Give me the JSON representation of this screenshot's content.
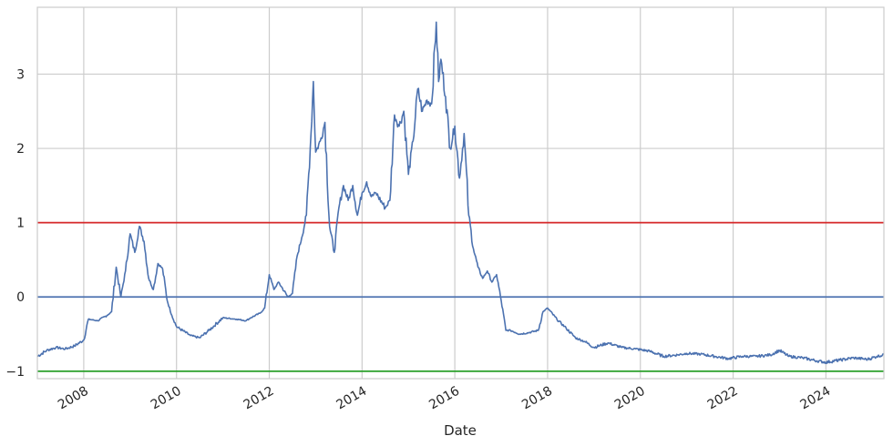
{
  "chart_data": {
    "type": "line",
    "title": "",
    "xlabel": "Date",
    "ylabel": "",
    "xlim": [
      2007.0,
      2025.25
    ],
    "ylim": [
      -1.1,
      3.9
    ],
    "grid": true,
    "x_ticks": [
      {
        "value": 2008,
        "label": "2008"
      },
      {
        "value": 2010,
        "label": "2010"
      },
      {
        "value": 2012,
        "label": "2012"
      },
      {
        "value": 2014,
        "label": "2014"
      },
      {
        "value": 2016,
        "label": "2016"
      },
      {
        "value": 2018,
        "label": "2018"
      },
      {
        "value": 2020,
        "label": "2020"
      },
      {
        "value": 2022,
        "label": "2022"
      },
      {
        "value": 2024,
        "label": "2024"
      }
    ],
    "y_ticks": [
      {
        "value": -1,
        "label": "−1"
      },
      {
        "value": 0,
        "label": "0"
      },
      {
        "value": 1,
        "label": "1"
      },
      {
        "value": 2,
        "label": "2"
      },
      {
        "value": 3,
        "label": "3"
      }
    ],
    "reference_lines": [
      {
        "y": 1,
        "color": "#d62728"
      },
      {
        "y": 0,
        "color": "#4c72b0"
      },
      {
        "y": -1,
        "color": "#2ca02c"
      }
    ],
    "series": [
      {
        "color": "#4c72b0",
        "x": [
          2007.0,
          2007.2,
          2007.4,
          2007.6,
          2007.8,
          2008.0,
          2008.1,
          2008.3,
          2008.5,
          2008.6,
          2008.7,
          2008.8,
          2008.9,
          2009.0,
          2009.1,
          2009.2,
          2009.3,
          2009.4,
          2009.5,
          2009.6,
          2009.7,
          2009.8,
          2009.9,
          2010.0,
          2010.3,
          2010.5,
          2010.7,
          2011.0,
          2011.3,
          2011.5,
          2011.6,
          2011.8,
          2011.9,
          2012.0,
          2012.1,
          2012.2,
          2012.4,
          2012.5,
          2012.6,
          2012.7,
          2012.8,
          2012.9,
          2012.95,
          2013.0,
          2013.1,
          2013.2,
          2013.3,
          2013.4,
          2013.5,
          2013.6,
          2013.7,
          2013.8,
          2013.9,
          2014.0,
          2014.1,
          2014.2,
          2014.3,
          2014.5,
          2014.6,
          2014.7,
          2014.8,
          2014.9,
          2015.0,
          2015.1,
          2015.2,
          2015.3,
          2015.4,
          2015.5,
          2015.6,
          2015.65,
          2015.7,
          2015.8,
          2015.9,
          2016.0,
          2016.1,
          2016.2,
          2016.3,
          2016.4,
          2016.5,
          2016.6,
          2016.7,
          2016.8,
          2016.9,
          2017.0,
          2017.1,
          2017.2,
          2017.4,
          2017.6,
          2017.8,
          2017.9,
          2018.0,
          2018.2,
          2018.4,
          2018.6,
          2018.8,
          2019.0,
          2019.3,
          2019.6,
          2019.9,
          2020.2,
          2020.5,
          2020.8,
          2021.0,
          2021.3,
          2021.6,
          2021.9,
          2022.2,
          2022.5,
          2022.8,
          2023.0,
          2023.2,
          2023.5,
          2023.8,
          2024.0,
          2024.3,
          2024.6,
          2024.9,
          2025.1,
          2025.25
        ],
        "values": [
          -0.8,
          -0.72,
          -0.68,
          -0.7,
          -0.66,
          -0.58,
          -0.3,
          -0.32,
          -0.25,
          -0.2,
          0.4,
          0.0,
          0.35,
          0.85,
          0.6,
          0.95,
          0.75,
          0.25,
          0.1,
          0.45,
          0.38,
          -0.05,
          -0.25,
          -0.4,
          -0.52,
          -0.55,
          -0.45,
          -0.28,
          -0.3,
          -0.32,
          -0.28,
          -0.22,
          -0.15,
          0.3,
          0.1,
          0.2,
          0.0,
          0.05,
          0.55,
          0.8,
          1.1,
          2.2,
          2.9,
          1.95,
          2.1,
          2.35,
          0.95,
          0.6,
          1.2,
          1.5,
          1.3,
          1.5,
          1.1,
          1.4,
          1.55,
          1.35,
          1.4,
          1.2,
          1.3,
          2.45,
          2.3,
          2.5,
          1.65,
          2.1,
          2.8,
          2.5,
          2.65,
          2.6,
          3.7,
          2.9,
          3.2,
          2.7,
          2.0,
          2.3,
          1.6,
          2.2,
          1.1,
          0.65,
          0.4,
          0.25,
          0.35,
          0.2,
          0.3,
          -0.05,
          -0.45,
          -0.45,
          -0.5,
          -0.48,
          -0.45,
          -0.2,
          -0.15,
          -0.3,
          -0.42,
          -0.55,
          -0.6,
          -0.68,
          -0.62,
          -0.68,
          -0.7,
          -0.73,
          -0.8,
          -0.78,
          -0.76,
          -0.77,
          -0.8,
          -0.83,
          -0.8,
          -0.8,
          -0.78,
          -0.72,
          -0.8,
          -0.82,
          -0.86,
          -0.88,
          -0.85,
          -0.82,
          -0.84,
          -0.8,
          -0.78
        ]
      }
    ]
  }
}
